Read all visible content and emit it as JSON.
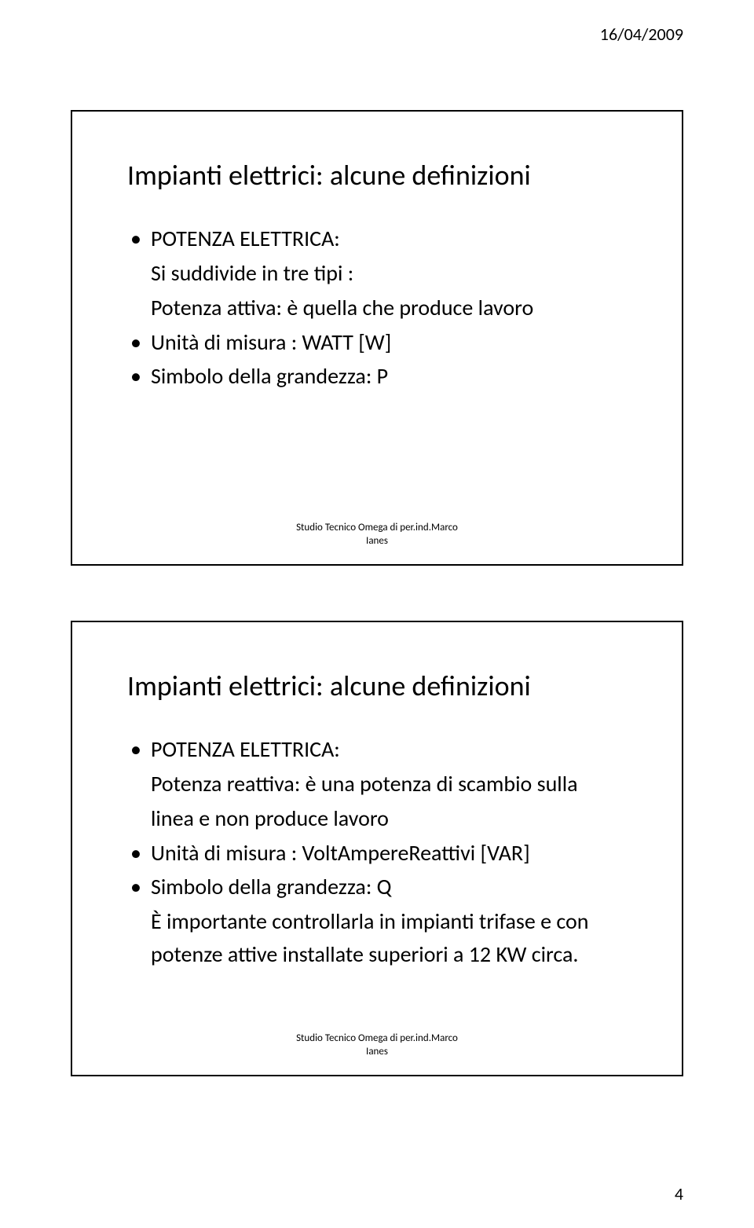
{
  "header": {
    "date": "16/04/2009"
  },
  "footer": {
    "page_number": "4"
  },
  "slide1": {
    "title": "Impianti elettrici: alcune definizioni",
    "items": {
      "heading": "POTENZA ELETTRICA:",
      "subline": "Si suddivide in tre tipi :",
      "def": "Potenza attiva: è quella che produce lavoro",
      "unit": "Unità di misura : WATT  [W]",
      "symbol": "Simbolo della grandezza: P"
    },
    "credit_line1": "Studio Tecnico Omega di per.ind.Marco",
    "credit_line2": "Ianes"
  },
  "slide2": {
    "title": "Impianti elettrici: alcune definizioni",
    "items": {
      "heading": "POTENZA ELETTRICA:",
      "def_l1": "Potenza reattiva: è una potenza di scambio sulla",
      "def_l2": "linea e non produce lavoro",
      "unit": "Unità di misura : VoltAmpereReattivi [VAR]",
      "symbol": "Simbolo della grandezza: Q",
      "note_l1": "È importante controllarla in impianti trifase e con",
      "note_l2": "potenze attive installate superiori a 12 KW circa."
    },
    "credit_line1": "Studio Tecnico Omega di per.ind.Marco",
    "credit_line2": "Ianes"
  }
}
